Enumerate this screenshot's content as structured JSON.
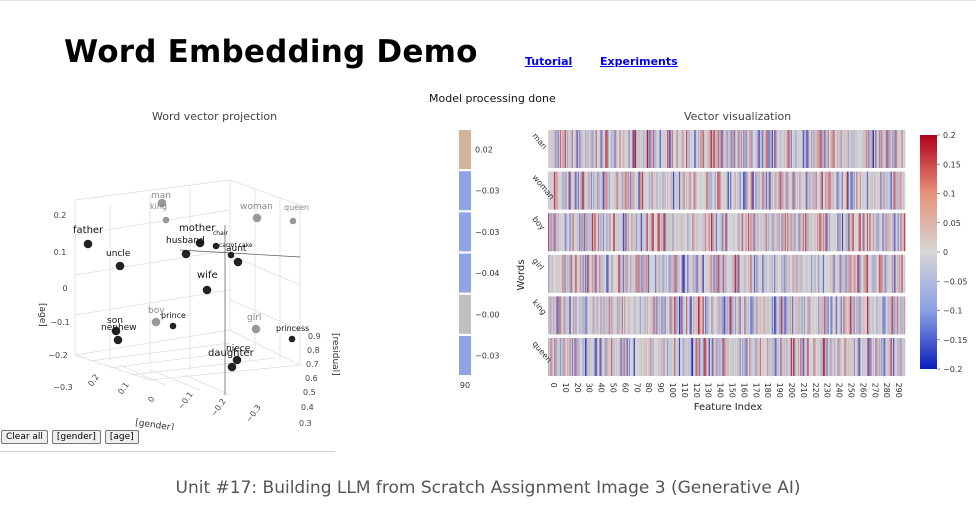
{
  "header": {
    "title": "Word Embedding Demo",
    "links": [
      "Tutorial",
      "Experiments"
    ]
  },
  "status": "Model processing done",
  "scatter": {
    "title": "Word vector projection",
    "axis_labels": {
      "x": "[gender]",
      "y": "[age]",
      "z": "[residual]"
    },
    "y_ticks": [
      "0.2",
      "0.1",
      "0",
      "−0.1",
      "−0.2",
      "−0.3"
    ],
    "x_ticks": [
      "0.2",
      "0.1",
      "0",
      "−0.1",
      "−0.2",
      "−0.3"
    ],
    "z_ticks": [
      "0.9",
      "0.8",
      "0.7",
      "0.6",
      "0.5",
      "0.4",
      "0.3"
    ],
    "words": [
      {
        "label": "man",
        "color": "#999999"
      },
      {
        "label": "king",
        "color": "#999999"
      },
      {
        "label": "woman",
        "color": "#999999"
      },
      {
        "label": "queen",
        "color": "#999999"
      },
      {
        "label": "father",
        "color": "#222222"
      },
      {
        "label": "uncle",
        "color": "#222222"
      },
      {
        "label": "mother",
        "color": "#222222"
      },
      {
        "label": "husband",
        "color": "#222222"
      },
      {
        "label": "chair",
        "color": "#222222"
      },
      {
        "label": "carrot_cake",
        "color": "#222222"
      },
      {
        "label": "aunt",
        "color": "#222222"
      },
      {
        "label": "wife",
        "color": "#222222"
      },
      {
        "label": "boy",
        "color": "#999999"
      },
      {
        "label": "prince",
        "color": "#222222"
      },
      {
        "label": "son",
        "color": "#222222"
      },
      {
        "label": "nephew",
        "color": "#222222"
      },
      {
        "label": "girl",
        "color": "#999999"
      },
      {
        "label": "princess",
        "color": "#222222"
      },
      {
        "label": "niece",
        "color": "#222222"
      },
      {
        "label": "daughter",
        "color": "#222222"
      }
    ]
  },
  "vector": {
    "title": "Vector visualization",
    "ylabel": "Words",
    "xlabel": "Feature Index",
    "words": [
      "man",
      "woman",
      "boy",
      "girl",
      "king",
      "queen"
    ],
    "summary_values": [
      "0.02",
      "−0.03",
      "−0.03",
      "−0.04",
      "−0.00",
      "−0.03"
    ],
    "summary_colors": [
      "#d2b49c",
      "#8ea4e6",
      "#8ea4e6",
      "#8ea4e6",
      "#c0c0c0",
      "#8ea4e6"
    ],
    "summary_axis": "90",
    "x_ticks": [
      "0",
      "10",
      "20",
      "30",
      "40",
      "50",
      "60",
      "70",
      "80",
      "90",
      "100",
      "110",
      "120",
      "130",
      "140",
      "150",
      "160",
      "170",
      "180",
      "190",
      "200",
      "210",
      "220",
      "230",
      "240",
      "250",
      "260",
      "270",
      "280",
      "290"
    ],
    "colorbar_ticks": [
      "0.2",
      "0.15",
      "0.1",
      "0.05",
      "0",
      "−0.05",
      "−0.1",
      "−0.15",
      "−0.2"
    ],
    "colorscale": {
      "low": "#0b1ebf",
      "mid": "#d6d6d6",
      "high": "#b2001a"
    }
  },
  "controls": [
    "Clear all",
    "[gender]",
    "[age]"
  ],
  "caption": "Unit #17: Building LLM from Scratch Assignment Image 3 (Generative AI)"
}
